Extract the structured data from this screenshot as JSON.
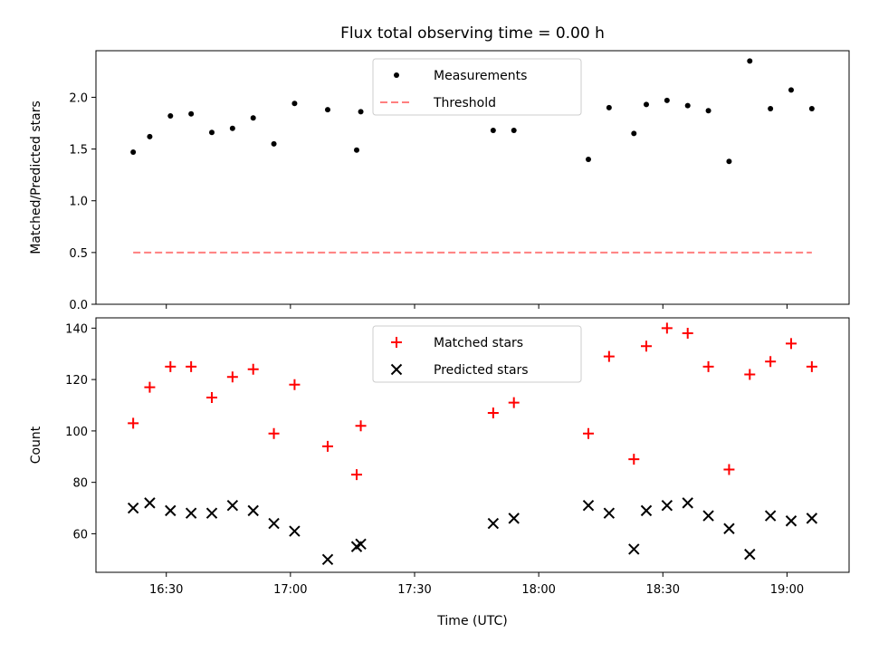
{
  "title": "Flux total observing time = 0.00 h",
  "chart_data": [
    {
      "type": "scatter",
      "ylabel": "Matched/Predicted stars",
      "ylim": [
        0,
        2.45
      ],
      "y_ticks": [
        0.0,
        0.5,
        1.0,
        1.5,
        2.0
      ],
      "y_tick_labels": [
        "0.0",
        "0.5",
        "1.0",
        "1.5",
        "2.0"
      ],
      "legend": {
        "placement": "upper center",
        "entries": [
          "Measurements",
          "Threshold"
        ]
      },
      "series": [
        {
          "name": "Measurements",
          "marker": "dot",
          "color": "#000000",
          "points": [
            [
              "16:22",
              1.47
            ],
            [
              "16:26",
              1.62
            ],
            [
              "16:31",
              1.82
            ],
            [
              "16:36",
              1.84
            ],
            [
              "16:41",
              1.66
            ],
            [
              "16:46",
              1.7
            ],
            [
              "16:51",
              1.8
            ],
            [
              "16:56",
              1.55
            ],
            [
              "17:01",
              1.94
            ],
            [
              "17:09",
              1.88
            ],
            [
              "17:16",
              1.49
            ],
            [
              "17:17",
              1.86
            ],
            [
              "17:49",
              1.68
            ],
            [
              "17:54",
              1.68
            ],
            [
              "18:12",
              1.4
            ],
            [
              "18:17",
              1.9
            ],
            [
              "18:23",
              1.65
            ],
            [
              "18:26",
              1.93
            ],
            [
              "18:31",
              1.97
            ],
            [
              "18:36",
              1.92
            ],
            [
              "18:41",
              1.87
            ],
            [
              "18:46",
              1.38
            ],
            [
              "18:51",
              2.35
            ],
            [
              "18:56",
              1.89
            ],
            [
              "19:01",
              2.07
            ],
            [
              "19:06",
              1.89
            ]
          ]
        },
        {
          "name": "Threshold",
          "style": "dashed",
          "color": "#ff7f7f",
          "points": [
            [
              "16:22",
              0.5
            ],
            [
              "19:06",
              0.5
            ]
          ]
        }
      ]
    },
    {
      "type": "scatter",
      "xlabel": "Time (UTC)",
      "ylabel": "Count",
      "ylim": [
        45,
        144
      ],
      "y_ticks": [
        60,
        80,
        100,
        120,
        140
      ],
      "y_tick_labels": [
        "60",
        "80",
        "100",
        "120",
        "140"
      ],
      "x_ticks": [
        "16:30",
        "17:00",
        "17:30",
        "18:00",
        "18:30",
        "19:00"
      ],
      "xlim": [
        "16:13",
        "19:15"
      ],
      "legend": {
        "placement": "upper center",
        "entries": [
          "Matched stars",
          "Predicted stars"
        ]
      },
      "series": [
        {
          "name": "Matched stars",
          "marker": "plus",
          "color": "#ff0000",
          "points": [
            [
              "16:22",
              103
            ],
            [
              "16:26",
              117
            ],
            [
              "16:31",
              125
            ],
            [
              "16:36",
              125
            ],
            [
              "16:41",
              113
            ],
            [
              "16:46",
              121
            ],
            [
              "16:51",
              124
            ],
            [
              "16:56",
              99
            ],
            [
              "17:01",
              118
            ],
            [
              "17:09",
              94
            ],
            [
              "17:16",
              83
            ],
            [
              "17:17",
              102
            ],
            [
              "17:49",
              107
            ],
            [
              "17:54",
              111
            ],
            [
              "18:12",
              99
            ],
            [
              "18:17",
              129
            ],
            [
              "18:23",
              89
            ],
            [
              "18:26",
              133
            ],
            [
              "18:31",
              140
            ],
            [
              "18:36",
              138
            ],
            [
              "18:41",
              125
            ],
            [
              "18:46",
              85
            ],
            [
              "18:51",
              122
            ],
            [
              "18:56",
              127
            ],
            [
              "19:01",
              134
            ],
            [
              "19:06",
              125
            ]
          ]
        },
        {
          "name": "Predicted stars",
          "marker": "x",
          "color": "#000000",
          "points": [
            [
              "16:22",
              70
            ],
            [
              "16:26",
              72
            ],
            [
              "16:31",
              69
            ],
            [
              "16:36",
              68
            ],
            [
              "16:41",
              68
            ],
            [
              "16:46",
              71
            ],
            [
              "16:51",
              69
            ],
            [
              "16:56",
              64
            ],
            [
              "17:01",
              61
            ],
            [
              "17:09",
              50
            ],
            [
              "17:16",
              55
            ],
            [
              "17:17",
              56
            ],
            [
              "17:49",
              64
            ],
            [
              "17:54",
              66
            ],
            [
              "18:12",
              71
            ],
            [
              "18:17",
              68
            ],
            [
              "18:23",
              54
            ],
            [
              "18:26",
              69
            ],
            [
              "18:31",
              71
            ],
            [
              "18:36",
              72
            ],
            [
              "18:41",
              67
            ],
            [
              "18:46",
              62
            ],
            [
              "18:51",
              52
            ],
            [
              "18:56",
              67
            ],
            [
              "19:01",
              65
            ],
            [
              "19:06",
              66
            ]
          ]
        }
      ]
    }
  ]
}
